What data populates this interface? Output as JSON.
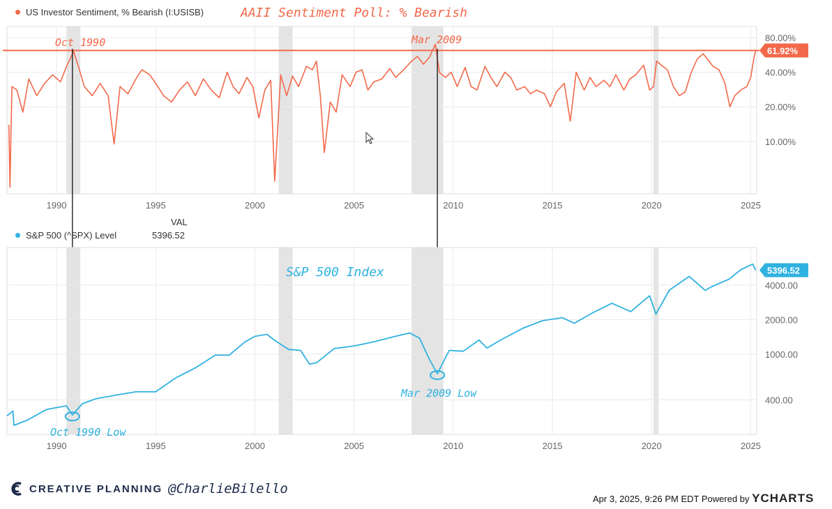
{
  "colors": {
    "bearish": "#f2694a",
    "spx": "#2fb2e0",
    "recession": "#e4e4e4",
    "grid": "#e9e9e9",
    "axis_text": "#666666",
    "brand": "#1e2b4a"
  },
  "top_legend": {
    "label": "US Investor Sentiment, % Bearish (I:USISB)",
    "annotation_title": "AAII Sentiment Poll: % Bearish"
  },
  "bottom_legend": {
    "col_header": "VAL",
    "label": "S&P 500 (^SPX) Level",
    "value": "5396.52"
  },
  "annotations": {
    "oct1990": "Oct 1990",
    "mar2009": "Mar 2009",
    "oct1990_low": "Oct 1990 Low",
    "mar2009_low": "Mar 2009 Low",
    "spx_title": "S&P 500 Index"
  },
  "footer": {
    "brand": "CREATIVE PLANNING",
    "handle": "@CharlieBilello",
    "timestamp": "Apr 3, 2025, 9:26 PM EDT",
    "powered_by": "Powered by",
    "provider": "YCHARTS"
  },
  "chart_data": [
    {
      "type": "line",
      "title": "US Investor Sentiment, % Bearish (I:USISB)",
      "x_range": [
        1987.5,
        2025.3
      ],
      "y_scale": "log",
      "y_range": [
        3.5,
        100
      ],
      "x_ticks": [
        1990,
        1995,
        2000,
        2005,
        2010,
        2015,
        2020,
        2025
      ],
      "y_ticks": [
        10,
        20,
        40,
        80
      ],
      "y_tick_labels": [
        "10.00%",
        "20.00%",
        "40.00%",
        "80.00%"
      ],
      "reference_line": 61.92,
      "last_value_label": "61.92%",
      "recessions": [
        [
          1990.5,
          1991.2
        ],
        [
          2001.2,
          2001.9
        ],
        [
          2007.9,
          2009.5
        ],
        [
          2020.1,
          2020.35
        ]
      ],
      "series": [
        {
          "name": "% Bearish",
          "points": [
            [
              1987.6,
              14
            ],
            [
              1987.65,
              4
            ],
            [
              1987.75,
              30
            ],
            [
              1988.0,
              28
            ],
            [
              1988.3,
              18
            ],
            [
              1988.6,
              35
            ],
            [
              1989.0,
              25
            ],
            [
              1989.4,
              32
            ],
            [
              1989.8,
              38
            ],
            [
              1990.2,
              33
            ],
            [
              1990.5,
              45
            ],
            [
              1990.75,
              55
            ],
            [
              1990.85,
              61
            ],
            [
              1991.1,
              45
            ],
            [
              1991.4,
              30
            ],
            [
              1991.8,
              25
            ],
            [
              1992.2,
              32
            ],
            [
              1992.6,
              25
            ],
            [
              1992.9,
              9.5
            ],
            [
              1993.2,
              30
            ],
            [
              1993.6,
              26
            ],
            [
              1994.0,
              35
            ],
            [
              1994.3,
              42
            ],
            [
              1994.7,
              38
            ],
            [
              1995.0,
              32
            ],
            [
              1995.4,
              25
            ],
            [
              1995.8,
              22
            ],
            [
              1996.2,
              28
            ],
            [
              1996.6,
              33
            ],
            [
              1997.0,
              25
            ],
            [
              1997.4,
              35
            ],
            [
              1997.8,
              28
            ],
            [
              1998.2,
              24
            ],
            [
              1998.6,
              40
            ],
            [
              1998.9,
              30
            ],
            [
              1999.2,
              26
            ],
            [
              1999.6,
              36
            ],
            [
              1999.9,
              30
            ],
            [
              2000.2,
              16
            ],
            [
              2000.5,
              28
            ],
            [
              2000.8,
              34
            ],
            [
              2001.0,
              4.5
            ],
            [
              2001.3,
              38
            ],
            [
              2001.6,
              25
            ],
            [
              2001.9,
              37
            ],
            [
              2002.2,
              30
            ],
            [
              2002.6,
              45
            ],
            [
              2002.9,
              42
            ],
            [
              2003.1,
              50
            ],
            [
              2003.3,
              25
            ],
            [
              2003.5,
              8
            ],
            [
              2003.8,
              22
            ],
            [
              2004.1,
              18
            ],
            [
              2004.4,
              38
            ],
            [
              2004.8,
              30
            ],
            [
              2005.1,
              40
            ],
            [
              2005.4,
              42
            ],
            [
              2005.7,
              28
            ],
            [
              2006.0,
              33
            ],
            [
              2006.4,
              35
            ],
            [
              2006.8,
              43
            ],
            [
              2007.1,
              36
            ],
            [
              2007.5,
              42
            ],
            [
              2007.9,
              50
            ],
            [
              2008.2,
              55
            ],
            [
              2008.5,
              47
            ],
            [
              2008.8,
              54
            ],
            [
              2009.1,
              70
            ],
            [
              2009.3,
              40
            ],
            [
              2009.6,
              36
            ],
            [
              2009.9,
              40
            ],
            [
              2010.2,
              30
            ],
            [
              2010.6,
              44
            ],
            [
              2010.9,
              30
            ],
            [
              2011.2,
              28
            ],
            [
              2011.6,
              45
            ],
            [
              2011.9,
              36
            ],
            [
              2012.2,
              30
            ],
            [
              2012.6,
              40
            ],
            [
              2012.9,
              36
            ],
            [
              2013.2,
              28
            ],
            [
              2013.6,
              30
            ],
            [
              2013.9,
              26
            ],
            [
              2014.2,
              28
            ],
            [
              2014.6,
              26
            ],
            [
              2014.9,
              20
            ],
            [
              2015.2,
              27
            ],
            [
              2015.6,
              32
            ],
            [
              2015.9,
              15
            ],
            [
              2016.2,
              40
            ],
            [
              2016.6,
              28
            ],
            [
              2016.9,
              36
            ],
            [
              2017.2,
              30
            ],
            [
              2017.6,
              34
            ],
            [
              2017.9,
              30
            ],
            [
              2018.2,
              38
            ],
            [
              2018.6,
              28
            ],
            [
              2018.9,
              35
            ],
            [
              2019.2,
              38
            ],
            [
              2019.6,
              46
            ],
            [
              2019.9,
              28
            ],
            [
              2020.1,
              30
            ],
            [
              2020.25,
              50
            ],
            [
              2020.5,
              46
            ],
            [
              2020.8,
              42
            ],
            [
              2021.1,
              30
            ],
            [
              2021.4,
              25
            ],
            [
              2021.7,
              27
            ],
            [
              2022.0,
              40
            ],
            [
              2022.3,
              52
            ],
            [
              2022.6,
              58
            ],
            [
              2022.9,
              50
            ],
            [
              2023.1,
              45
            ],
            [
              2023.4,
              42
            ],
            [
              2023.7,
              32
            ],
            [
              2023.95,
              20
            ],
            [
              2024.2,
              25
            ],
            [
              2024.5,
              28
            ],
            [
              2024.8,
              30
            ],
            [
              2025.0,
              36
            ],
            [
              2025.15,
              52
            ],
            [
              2025.25,
              61.92
            ]
          ]
        }
      ]
    },
    {
      "type": "line",
      "title": "S&P 500 (^SPX) Level",
      "x_range": [
        1987.5,
        2025.3
      ],
      "y_scale": "log",
      "y_range": [
        200,
        8500
      ],
      "x_ticks": [
        1990,
        1995,
        2000,
        2005,
        2010,
        2015,
        2020,
        2025
      ],
      "y_ticks": [
        400,
        1000,
        2000,
        4000
      ],
      "y_tick_labels": [
        "400.00",
        "1000.00",
        "2000.00",
        "4000.00"
      ],
      "last_value_label": "5396.52",
      "recessions": [
        [
          1990.5,
          1991.2
        ],
        [
          2001.2,
          2001.9
        ],
        [
          2007.9,
          2009.5
        ],
        [
          2020.1,
          2020.35
        ]
      ],
      "lows": [
        [
          1990.8,
          295
        ],
        [
          2009.2,
          676
        ]
      ],
      "series": [
        {
          "name": "S&P 500",
          "points": [
            [
              1987.5,
              290
            ],
            [
              1987.8,
              320
            ],
            [
              1987.85,
              240
            ],
            [
              1988.5,
              265
            ],
            [
              1989.5,
              330
            ],
            [
              1990.5,
              355
            ],
            [
              1990.8,
              295
            ],
            [
              1991.3,
              370
            ],
            [
              1992.0,
              410
            ],
            [
              1993.0,
              440
            ],
            [
              1994.0,
              470
            ],
            [
              1995.0,
              470
            ],
            [
              1996.0,
              620
            ],
            [
              1997.0,
              760
            ],
            [
              1998.0,
              980
            ],
            [
              1998.7,
              980
            ],
            [
              1999.5,
              1280
            ],
            [
              2000.0,
              1430
            ],
            [
              2000.6,
              1490
            ],
            [
              2001.0,
              1320
            ],
            [
              2001.7,
              1100
            ],
            [
              2002.3,
              1080
            ],
            [
              2002.75,
              820
            ],
            [
              2003.1,
              840
            ],
            [
              2004.0,
              1120
            ],
            [
              2005.0,
              1180
            ],
            [
              2006.0,
              1280
            ],
            [
              2007.0,
              1420
            ],
            [
              2007.8,
              1530
            ],
            [
              2008.3,
              1380
            ],
            [
              2008.8,
              900
            ],
            [
              2009.2,
              676
            ],
            [
              2009.8,
              1080
            ],
            [
              2010.5,
              1060
            ],
            [
              2011.3,
              1330
            ],
            [
              2011.7,
              1130
            ],
            [
              2012.5,
              1360
            ],
            [
              2013.5,
              1680
            ],
            [
              2014.5,
              1960
            ],
            [
              2015.5,
              2080
            ],
            [
              2016.1,
              1860
            ],
            [
              2017.0,
              2280
            ],
            [
              2018.0,
              2780
            ],
            [
              2018.95,
              2350
            ],
            [
              2019.9,
              3230
            ],
            [
              2020.22,
              2237
            ],
            [
              2020.9,
              3620
            ],
            [
              2021.9,
              4760
            ],
            [
              2022.7,
              3600
            ],
            [
              2023.0,
              3850
            ],
            [
              2023.9,
              4500
            ],
            [
              2024.5,
              5450
            ],
            [
              2025.1,
              6100
            ],
            [
              2025.25,
              5396.52
            ]
          ]
        }
      ]
    }
  ]
}
